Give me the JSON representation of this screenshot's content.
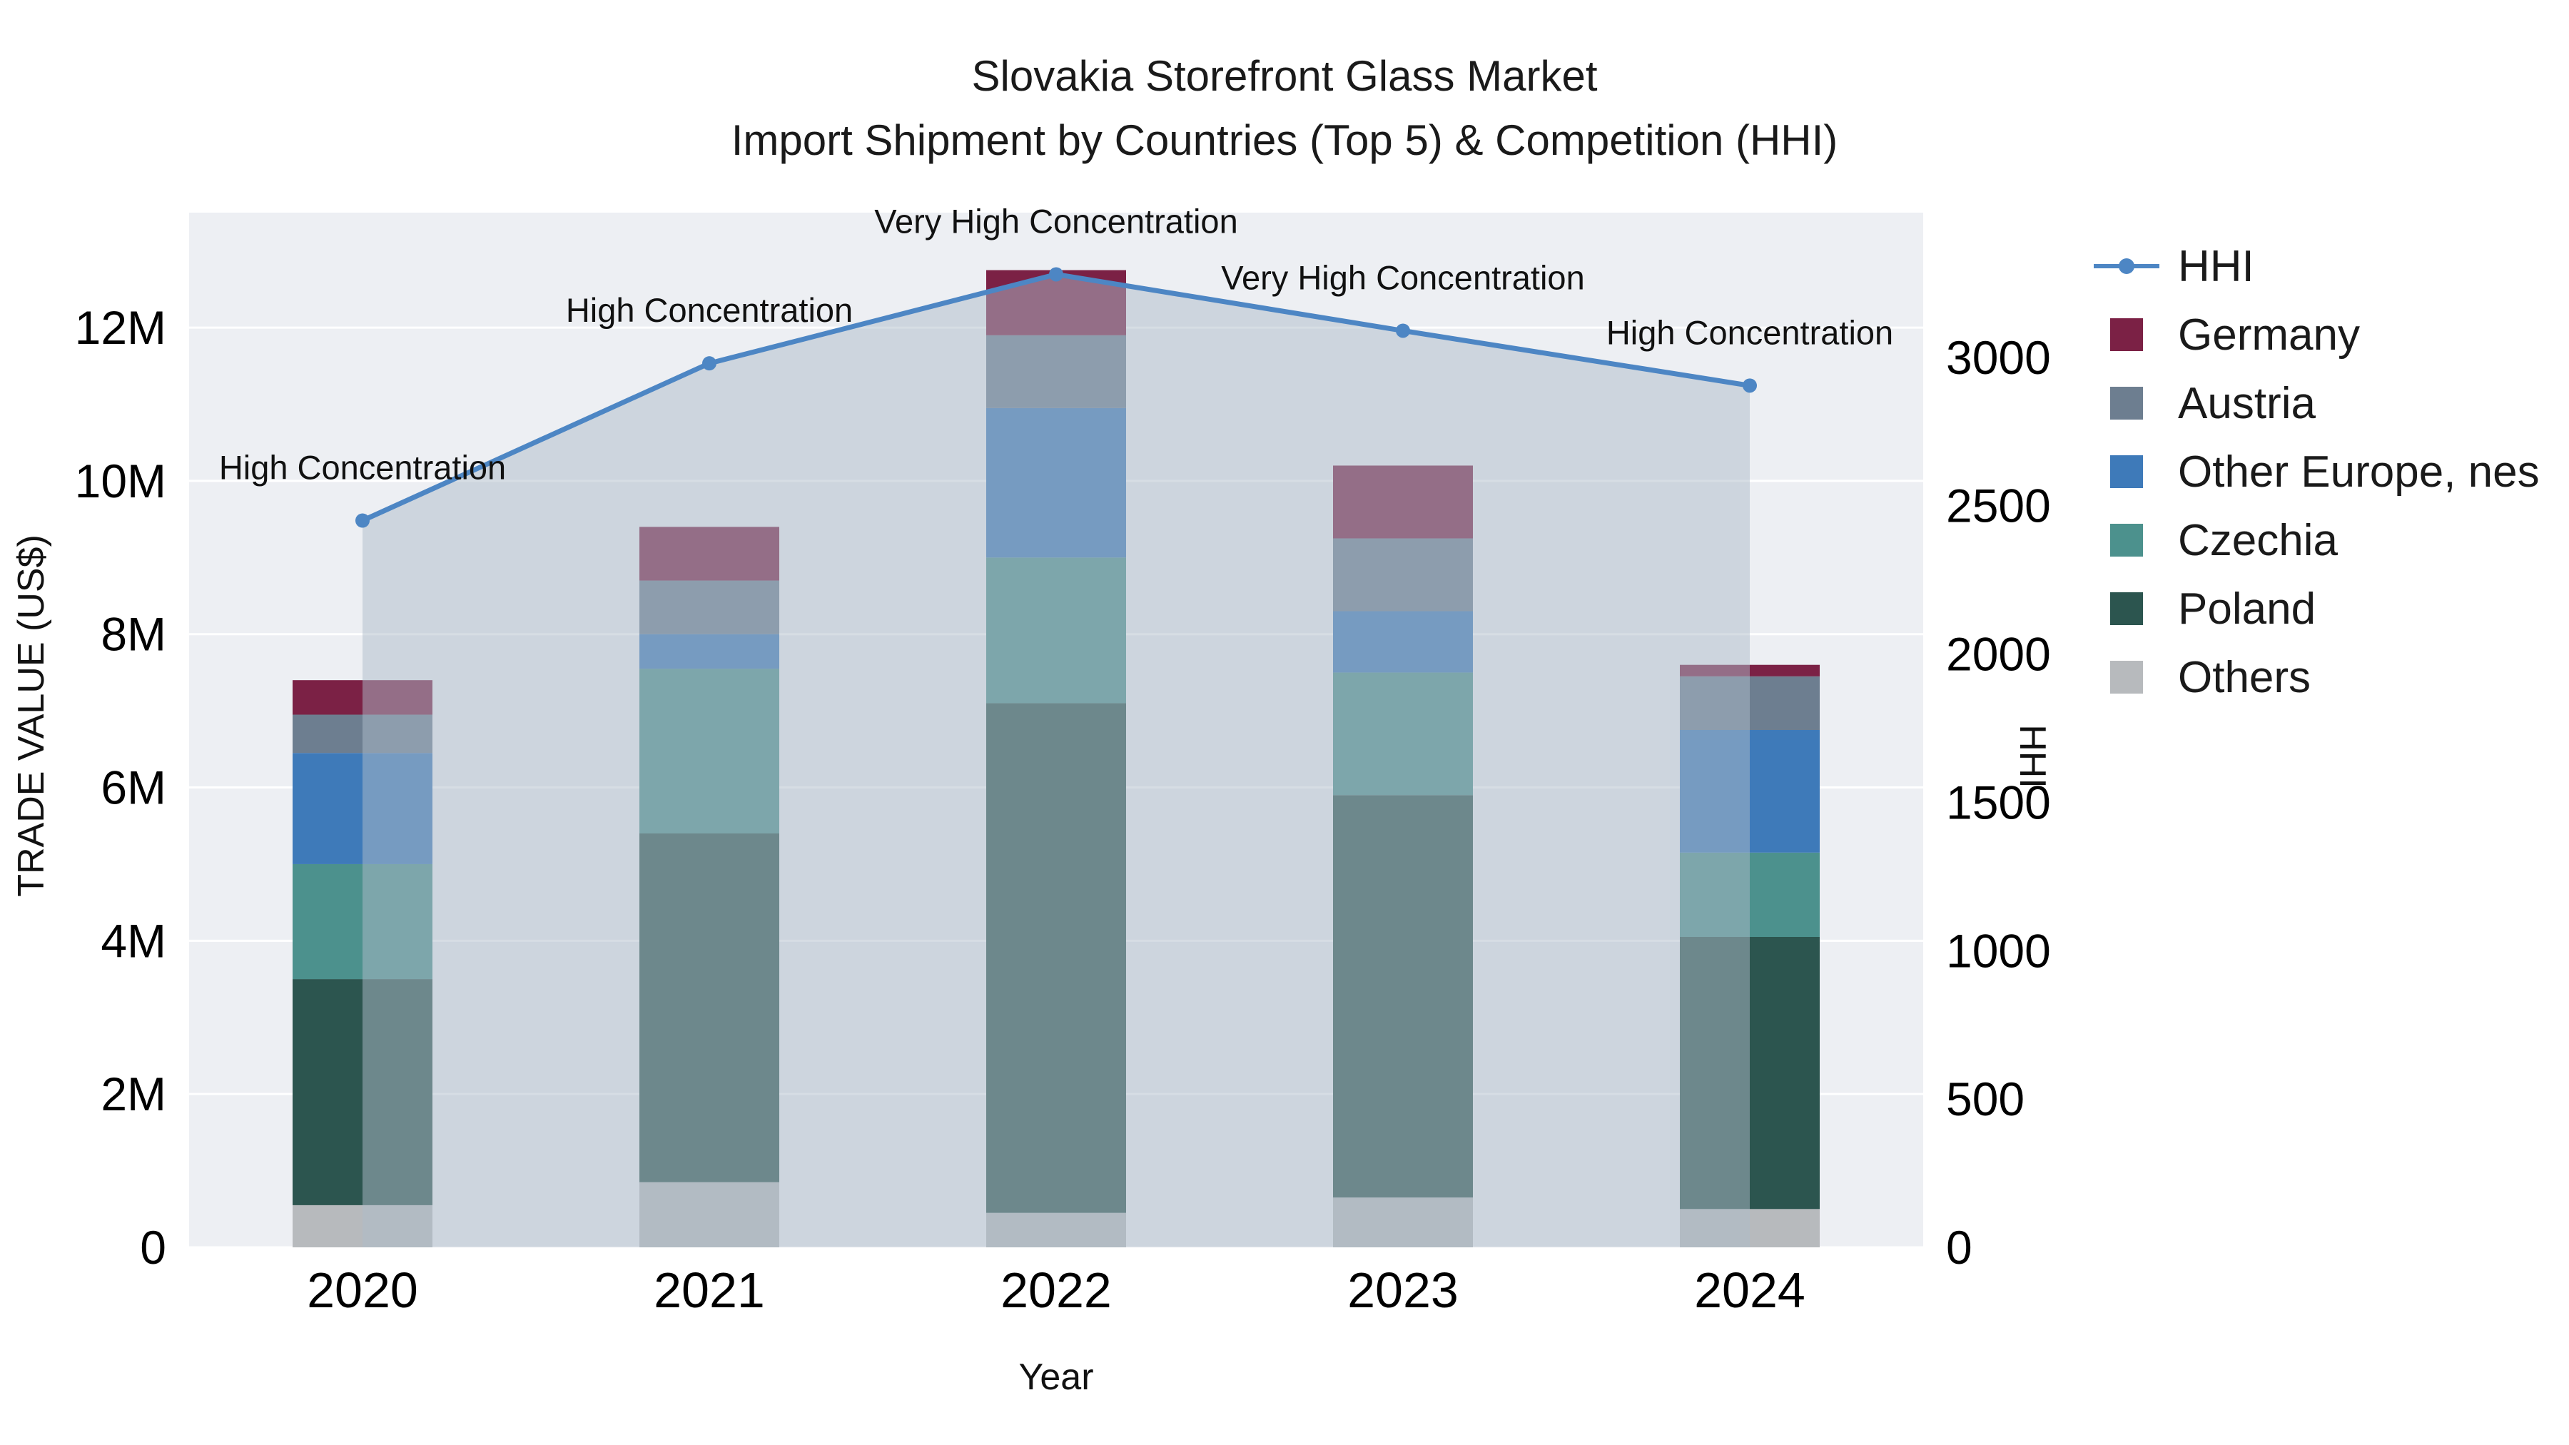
{
  "chart_data": {
    "type": "bar",
    "subtype": "stacked-bar-with-line-overlay",
    "title_lines": [
      "Slovakia Storefront Glass Market",
      "Import Shipment by Countries (Top 5) & Competition (HHI)"
    ],
    "xlabel": "Year",
    "ylabel_left": "TRADE VALUE (US$)",
    "ylabel_right": "HHI",
    "categories": [
      "2020",
      "2021",
      "2022",
      "2023",
      "2024"
    ],
    "bar_series": [
      {
        "name": "Germany",
        "color": "#7b2145",
        "values": [
          450000,
          700000,
          850000,
          950000,
          150000
        ]
      },
      {
        "name": "Austria",
        "color": "#6d7e90",
        "values": [
          500000,
          700000,
          950000,
          950000,
          700000
        ]
      },
      {
        "name": "Other Europe, nes",
        "color": "#3e7ab9",
        "values": [
          1450000,
          450000,
          1950000,
          800000,
          1600000
        ]
      },
      {
        "name": "Czechia",
        "color": "#4c918d",
        "values": [
          1500000,
          2150000,
          1900000,
          1600000,
          1100000
        ]
      },
      {
        "name": "Poland",
        "color": "#2c554f",
        "values": [
          2950000,
          4550000,
          6650000,
          5250000,
          3550000
        ]
      },
      {
        "name": "Others",
        "color": "#b7babd",
        "values": [
          550000,
          850000,
          450000,
          650000,
          500000
        ]
      }
    ],
    "stack_order_bottom_to_top": [
      "Others",
      "Poland",
      "Czechia",
      "Other Europe, nes",
      "Austria",
      "Germany"
    ],
    "bar_totals": [
      7400000,
      9400000,
      12750000,
      10200000,
      7600000
    ],
    "line_series": {
      "name": "HHI",
      "color": "#4d86c4",
      "area_fill": "rgba(173,187,202,0.5)",
      "values": [
        2450,
        2980,
        3280,
        3090,
        2905
      ]
    },
    "annotations": [
      "High Concentration",
      "High Concentration",
      "Very High Concentration",
      "Very High Concentration",
      "High Concentration"
    ],
    "axes": {
      "left": {
        "max": 13500000,
        "ticks": [
          {
            "v": 0,
            "label": "0"
          },
          {
            "v": 2000000,
            "label": "2M"
          },
          {
            "v": 4000000,
            "label": "4M"
          },
          {
            "v": 6000000,
            "label": "6M"
          },
          {
            "v": 8000000,
            "label": "8M"
          },
          {
            "v": 10000000,
            "label": "10M"
          },
          {
            "v": 12000000,
            "label": "12M"
          }
        ]
      },
      "right": {
        "max": 3488,
        "ticks": [
          {
            "v": 0,
            "label": "0"
          },
          {
            "v": 500,
            "label": "500"
          },
          {
            "v": 1000,
            "label": "1000"
          },
          {
            "v": 1500,
            "label": "1500"
          },
          {
            "v": 2000,
            "label": "2000"
          },
          {
            "v": 2500,
            "label": "2500"
          },
          {
            "v": 3000,
            "label": "3000"
          }
        ]
      }
    },
    "legend": [
      "HHI",
      "Germany",
      "Austria",
      "Other Europe, nes",
      "Czechia",
      "Poland",
      "Others"
    ],
    "legend_position": "right",
    "grid": "horizontal-white-on-light-gray",
    "plot_background": "#edeff3"
  }
}
